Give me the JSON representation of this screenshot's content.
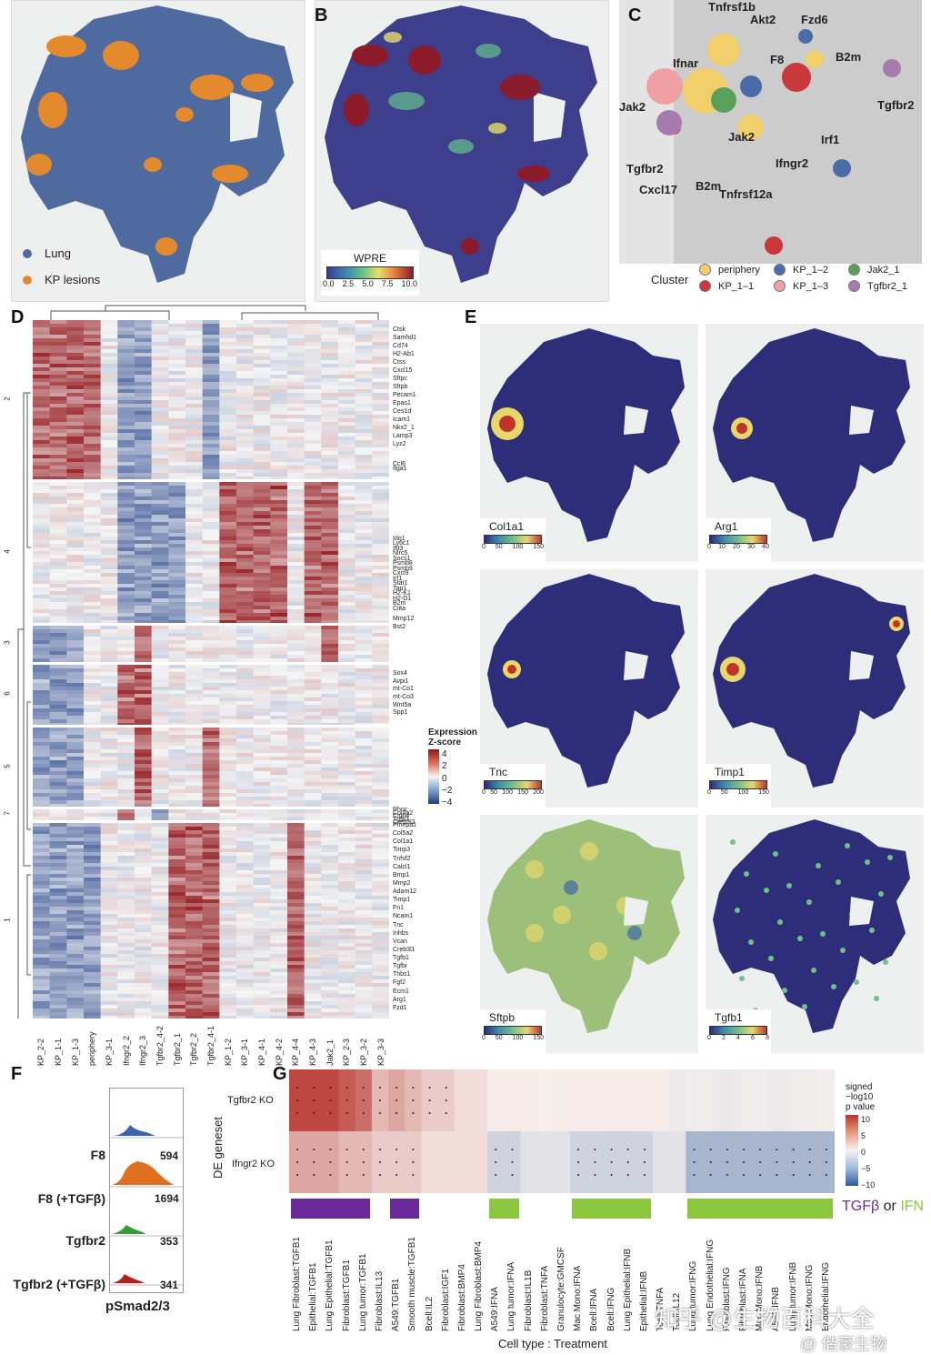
{
  "panels": {
    "A": {
      "label": "A",
      "legend": [
        {
          "name": "Lung",
          "color": "#4e6a9e"
        },
        {
          "name": "KP lesions",
          "color": "#e48a2e"
        }
      ]
    },
    "B": {
      "label": "B",
      "colorbar_title": "WPRE",
      "ticks": [
        "0.0",
        "2.5",
        "5.0",
        "7.5",
        "10.0"
      ]
    },
    "C": {
      "label": "C",
      "gene_labels": [
        "Tnfrsf1b",
        "Akt2",
        "Fzd6",
        "F8",
        "B2m",
        "Ifnar",
        "Jak2",
        "Tgfbr2",
        "Jak2",
        "Irf1",
        "Ifngr2",
        "Tgfbr2",
        "B2m",
        "Tnfrsf12a",
        "Cxcl17"
      ],
      "legend_title": "Cluster",
      "clusters": [
        {
          "name": "periphery",
          "color": "#f1d06b"
        },
        {
          "name": "KP_1–2",
          "color": "#4a6aa8"
        },
        {
          "name": "Jak2_1",
          "color": "#5aa05a"
        },
        {
          "name": "KP_1–1",
          "color": "#c9383a"
        },
        {
          "name": "KP_1–3",
          "color": "#f0a0a4"
        },
        {
          "name": "Tgfbr2_1",
          "color": "#a77bb0"
        }
      ]
    },
    "D": {
      "label": "D",
      "cluster_ids": [
        "2",
        "4",
        "3",
        "6",
        "5",
        "7",
        "1"
      ],
      "columns": [
        "KP_2-2",
        "KP_1-1",
        "KP_1-3",
        "periphery",
        "KP_3-1",
        "Ifngr2_2",
        "Ifngr2_3",
        "Tgfbr2_4-2",
        "Tgfbr2_1",
        "Tgfbr2_2",
        "Tgfbr2_4-1",
        "KP_1-2",
        "KP_3-1",
        "KP_4-1",
        "KP_4-2",
        "KP_4-4",
        "KP_4-3",
        "Jak2_1",
        "KP_2-3",
        "KP_3-2",
        "KP_3-3"
      ],
      "genes": [
        "Ctsk",
        "Samhd1",
        "Cd74",
        "H2-Ab1",
        "Ctss",
        "Cxcl15",
        "Sftpc",
        "Sftpb",
        "Pecam1",
        "Epas1",
        "Ces1d",
        "Icam1",
        "Nkx2_1",
        "Lamp3",
        "Lyz2",
        "Ccl6",
        "Itga1",
        "Ido1",
        "Ly6c1",
        "Ifit3",
        "Nlrc5",
        "Socs1",
        "Psmb8",
        "Psmb9",
        "Cxcl9",
        "Irf1",
        "Stat1",
        "Tap1",
        "H2-K1",
        "H2-D1",
        "B2m",
        "Ciita",
        "Mmp12",
        "Bst2",
        "Sox4",
        "Avpi1",
        "mt-Co1",
        "mt-Co3",
        "Wnt5a",
        "Spp1",
        "Rhoc",
        "Col4a2",
        "Cldn4",
        "Tgfb3",
        "Creb3l2",
        "Pmepa1",
        "Col5a2",
        "Col1a1",
        "Timp3",
        "Tnfsf2",
        "Calcl1",
        "Bmp1",
        "Mmp2",
        "Adam12",
        "Timp1",
        "Fn1",
        "Ncam1",
        "Tnc",
        "Inhbs",
        "Vcan",
        "Creb3l1",
        "Tgfb1",
        "Tgfbi",
        "Thbs1",
        "Fgf2",
        "Ecm1",
        "Arg1",
        "Fzd1"
      ],
      "legend_title": "Expression Z-score",
      "legend_ticks": [
        "4",
        "2",
        "0",
        "−2",
        "−4"
      ]
    },
    "E": {
      "label": "E",
      "maps": [
        {
          "gene": "Col1a1",
          "ticks": [
            "0",
            "50",
            "100",
            "150"
          ]
        },
        {
          "gene": "Arg1",
          "ticks": [
            "0",
            "10",
            "20",
            "30",
            "40"
          ]
        },
        {
          "gene": "Tnc",
          "ticks": [
            "0",
            "50",
            "100",
            "150",
            "200"
          ]
        },
        {
          "gene": "Timp1",
          "ticks": [
            "0",
            "50",
            "100",
            "150"
          ]
        },
        {
          "gene": "Sftpb",
          "ticks": [
            "0",
            "50",
            "100",
            "150"
          ]
        },
        {
          "gene": "Tgfb1",
          "ticks": [
            "0",
            "2",
            "4",
            "6",
            "8"
          ]
        }
      ]
    },
    "F": {
      "label": "F",
      "rows": [
        {
          "name": "F8",
          "value": "594",
          "color": "#3b64ad"
        },
        {
          "name": "F8 (+TGFβ)",
          "value": "1694",
          "color": "#e07020"
        },
        {
          "name": "Tgfbr2",
          "value": "353",
          "color": "#3a9a3a"
        },
        {
          "name": "Tgfbr2 (+TGFβ)",
          "value": "341",
          "color": "#b22020"
        }
      ],
      "xlabel": "pSmad2/3"
    },
    "G": {
      "label": "G",
      "ylabel": "DE geneset",
      "rows": [
        "Tgfbr2 KO",
        "Ifngr2 KO"
      ],
      "columns": [
        "Lung Fibroblast:TGFB1",
        "Epithelial:TGFB1",
        "Lung Epithelial:TGFB1",
        "Fibroblast:TGFB1",
        "Lung tumor:TGFB1",
        "Fibroblast:IL13",
        "A549:TGFB1",
        "Smooth muscle:TGFB1",
        "Bcell:IL2",
        "Fibroblast:IGF1",
        "Fibroblast:BMP4",
        "Lung Fibroblast:BMP4",
        "A549:IFNA",
        "Lung tumor:IFNA",
        "Fibroblast:IL1B",
        "Fibroblast:TNFA",
        "Granulocyte:GMCSF",
        "Mac Mono:IFNA",
        "Bcell:IFNA",
        "Bcell:IFNG",
        "Lung Epithelial:IFNB",
        "Epithelial:IFNB",
        "Tcell:TNFA",
        "Tcell:IL12",
        "Lung tumor:IFNG",
        "Lung Endothelial:IFNG",
        "Fibroblast:IFNG",
        "Fibroblast:IFNA",
        "Mac Mono:IFNB",
        "A549:IFNB",
        "Lung tumor:IFNB",
        "Mac Mono:IFNG",
        "Endothelial:IFNG"
      ],
      "row1_values": [
        9,
        9,
        9,
        8,
        7,
        3,
        4,
        3,
        2,
        2,
        1,
        1,
        0.2,
        0.3,
        0.2,
        0.1,
        0.2,
        0.2,
        0.2,
        0.3,
        0.3,
        0.2,
        0.2,
        -0.5,
        -0.3,
        -0.4,
        -0.6,
        -0.4,
        -0.3,
        -0.5,
        -0.4,
        -0.3,
        -0.2
      ],
      "row2_values": [
        4,
        4,
        4,
        3,
        3,
        2,
        2,
        2,
        1,
        1,
        1,
        1,
        -2,
        -2,
        -1,
        -1,
        -1,
        -2,
        -2,
        -2,
        -2,
        -2,
        -1,
        -1,
        -4,
        -4,
        -4,
        -4,
        -4,
        -4,
        -4,
        -4,
        -4
      ],
      "xlabel": "Cell type : Treatment",
      "legend_title": [
        "signed",
        "−log10",
        "p value"
      ],
      "legend_ticks": [
        "10",
        "5",
        "0",
        "−5",
        "−10"
      ],
      "group_bar_colors": {
        "tgfb": "#6a2a9a",
        "ifn": "#8cc63f"
      },
      "group_caption": {
        "tgfb": "TGFβ",
        "or": " or ",
        "ifn": "IFN"
      }
    }
  },
  "watermark": "知乎 @生物百科大全",
  "watermark2": "@ 偕豪生物"
}
